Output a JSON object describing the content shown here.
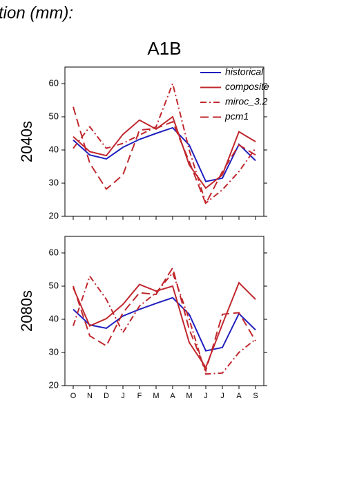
{
  "header": "tion (mm):",
  "chart_data": [
    {
      "type": "line",
      "title": "A1B",
      "y_label": "2040s",
      "show_xticklabels": false,
      "legend": "upper right",
      "categories": [
        "O",
        "N",
        "D",
        "J",
        "F",
        "M",
        "A",
        "M",
        "J",
        "J",
        "A",
        "S"
      ],
      "ylim": [
        20,
        65
      ],
      "yticks": [
        20,
        30,
        40,
        50,
        60
      ],
      "series": [
        {
          "name": "historical",
          "color": "#1f1fbf",
          "style": "solid",
          "values": [
            43,
            38.5,
            37.3,
            40.8,
            43.2,
            45,
            46.7,
            41.5,
            30.5,
            31.5,
            41.7,
            36.8
          ]
        },
        {
          "name": "composite",
          "color": "#c0272d",
          "style": "solid",
          "values": [
            44,
            39.5,
            38.3,
            44.7,
            49,
            46.3,
            50,
            35.5,
            28.5,
            32.5,
            45.5,
            42.5
          ]
        },
        {
          "name": "miroc_3.2",
          "color": "#c0272d",
          "style": "dashdot",
          "values": [
            40.5,
            47,
            40.5,
            42,
            44.5,
            47,
            60,
            40,
            24,
            28,
            33.5,
            40.5
          ]
        },
        {
          "name": "pcm1",
          "color": "#c0272d",
          "style": "dashed",
          "values": [
            53,
            36,
            28.2,
            32.5,
            46,
            46.5,
            48.5,
            36.5,
            23.8,
            33.5,
            41.5,
            38.5
          ]
        }
      ]
    },
    {
      "type": "line",
      "y_label": "2080s",
      "show_xticklabels": true,
      "categories": [
        "O",
        "N",
        "D",
        "J",
        "F",
        "M",
        "A",
        "M",
        "J",
        "J",
        "A",
        "S"
      ],
      "ylim": [
        20,
        65
      ],
      "yticks": [
        20,
        30,
        40,
        50,
        60
      ],
      "series": [
        {
          "color": "#1f1fbf",
          "style": "solid",
          "values": [
            43,
            38.3,
            37.3,
            41,
            43,
            44.8,
            46.5,
            41.5,
            30.5,
            31.5,
            41.7,
            36.8
          ]
        },
        {
          "color": "#c0272d",
          "style": "solid",
          "values": [
            49.5,
            38,
            40.2,
            44.5,
            50.5,
            48.5,
            50,
            33,
            25.5,
            38.5,
            51,
            46
          ]
        },
        {
          "color": "#c0272d",
          "style": "dashdot",
          "values": [
            38,
            53,
            46,
            36,
            44,
            48,
            54,
            40,
            23.5,
            23.8,
            30,
            34
          ]
        },
        {
          "color": "#c0272d",
          "style": "dashed",
          "values": [
            50,
            35,
            32,
            42,
            48,
            47.5,
            55.5,
            37,
            24.5,
            41.5,
            42,
            33.5
          ]
        }
      ]
    }
  ]
}
